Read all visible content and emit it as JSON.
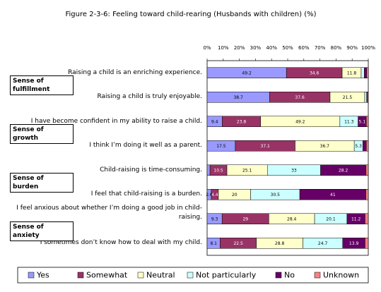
{
  "chart_data": {
    "type": "stacked_bar_horizontal",
    "title": "Figure 2-3-6: Feeling toward child-rearing (Husbands with children) (%)",
    "categories": [
      "Raising a child is an enriching experience.",
      "Raising a child is truly enjoyable.",
      "I have become confident in my ability to raise a child.",
      "I think I’m doing it well as a parent.",
      "Child-raising is time-consuming.",
      "I feel that child-raising is a burden.",
      "I feel anxious about whether I’m doing a good job in child-raising.",
      "I sometimes don’t know how to deal with my child."
    ],
    "groups": [
      {
        "label": "Sense of fulfillment",
        "rows": [
          0,
          1
        ]
      },
      {
        "label": "Sense of growth",
        "rows": [
          2,
          3
        ]
      },
      {
        "label": "Sense of burden",
        "rows": [
          4,
          5
        ]
      },
      {
        "label": "Sense of anxiety",
        "rows": [
          6,
          7
        ]
      }
    ],
    "series": [
      {
        "name": "Yes",
        "color": "#9999ff",
        "values": [
          49.2,
          38.7,
          9.4,
          17.5,
          1.8,
          2.6,
          9.3,
          8.1
        ]
      },
      {
        "name": "Somewhat",
        "color": "#993366",
        "values": [
          34.6,
          37.6,
          23.8,
          37.1,
          10.5,
          4.4,
          29.0,
          22.5
        ]
      },
      {
        "name": "Neutral",
        "color": "#ffffcc",
        "values": [
          11.8,
          21.5,
          49.2,
          36.7,
          25.1,
          20.0,
          28.4,
          28.8
        ]
      },
      {
        "name": "Not particularly",
        "color": "#ccffff",
        "values": [
          1.9,
          1.2,
          11.3,
          5.3,
          33.0,
          30.5,
          20.1,
          24.7
        ]
      },
      {
        "name": "No",
        "color": "#660066",
        "values": [
          1.5,
          0.5,
          5.1,
          2.2,
          28.2,
          41.0,
          11.2,
          13.9
        ]
      },
      {
        "name": "Unknown",
        "color": "#ff8080",
        "values": [
          1.0,
          0.5,
          1.2,
          1.2,
          1.4,
          1.5,
          2.0,
          2.0
        ]
      }
    ],
    "xlim": [
      0,
      100
    ],
    "xticks": [
      {
        "value": 0,
        "label": "0%"
      },
      {
        "value": 10,
        "label": "10%"
      },
      {
        "value": 20,
        "label": "20%"
      },
      {
        "value": 30,
        "label": "30%"
      },
      {
        "value": 40,
        "label": "40%"
      },
      {
        "value": 50,
        "label": "50%"
      },
      {
        "value": 60,
        "label": "60%"
      },
      {
        "value": 70,
        "label": "70%"
      },
      {
        "value": 80,
        "label": "80%"
      },
      {
        "value": 90,
        "label": "90%"
      },
      {
        "value": 100,
        "label": "100%"
      }
    ],
    "legend": "bottom"
  }
}
